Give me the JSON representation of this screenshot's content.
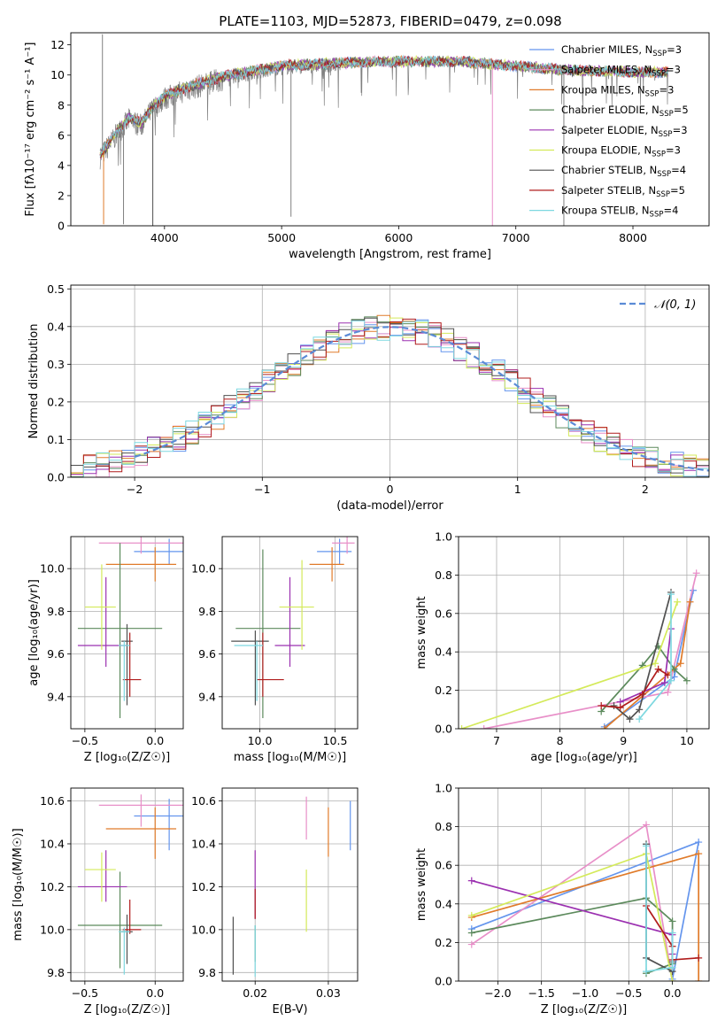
{
  "title": "PLATE=1103, MJD=52873, FIBERID=0479, z=0.098",
  "models": [
    {
      "name": "Chabrier MILES",
      "nssp": "3",
      "color": "#6495ed"
    },
    {
      "name": "Salpeter MILES",
      "nssp": "3",
      "color": "#e88fc8"
    },
    {
      "name": "Kroupa MILES",
      "nssp": "3",
      "color": "#e07b2a"
    },
    {
      "name": "Chabrier ELODIE",
      "nssp": "5",
      "color": "#5c8a5c"
    },
    {
      "name": "Salpeter ELODIE",
      "nssp": "3",
      "color": "#9b30b0"
    },
    {
      "name": "Kroupa ELODIE",
      "nssp": "3",
      "color": "#d4ea5a"
    },
    {
      "name": "Chabrier STELIB",
      "nssp": "4",
      "color": "#505050"
    },
    {
      "name": "Salpeter STELIB",
      "nssp": "5",
      "color": "#b01c1c"
    },
    {
      "name": "Kroupa STELIB",
      "nssp": "4",
      "color": "#7ed8e0"
    }
  ],
  "chart_data": [
    {
      "id": "spectrum",
      "type": "line",
      "xlabel": "wavelength [Angstrom, rest frame]",
      "ylabel": "Flux [fλ10⁻¹⁷ erg cm⁻² s⁻¹ A⁻¹]",
      "xlim": [
        3200,
        8650
      ],
      "ylim": [
        0,
        12.8
      ],
      "xticks": [
        4000,
        5000,
        6000,
        7000,
        8000
      ],
      "yticks": [
        0,
        2,
        4,
        6,
        8,
        10,
        12
      ],
      "continuum": {
        "x": [
          3450,
          3500,
          3600,
          3700,
          3800,
          3900,
          4000,
          4200,
          4500,
          5000,
          5500,
          6000,
          6500,
          7000,
          7500,
          8000,
          8300
        ],
        "y": [
          4.7,
          5.2,
          6.3,
          7.2,
          6.8,
          7.9,
          8.6,
          9.2,
          9.9,
          10.6,
          10.8,
          10.9,
          10.9,
          10.6,
          10.3,
          10.2,
          10.2
        ]
      },
      "data_range": [
        3450,
        8300
      ],
      "spikes": [
        {
          "x": 3470,
          "y": 12.7
        },
        {
          "x": 3480,
          "y": 0.1
        },
        {
          "x": 3650,
          "y": 0.1
        },
        {
          "x": 3900,
          "y": 0.0
        },
        {
          "x": 5080,
          "y": 0.6
        },
        {
          "x": 6800,
          "y": 0.0
        },
        {
          "x": 7410,
          "y": 0.0
        }
      ]
    },
    {
      "id": "residuals",
      "type": "histogram",
      "xlabel": "(data-model)/error",
      "ylabel": "Normed distribution",
      "xlim": [
        -2.5,
        2.5
      ],
      "ylim": [
        0,
        0.51
      ],
      "xticks": [
        -2,
        -1,
        0,
        1,
        2
      ],
      "yticks": [
        0.0,
        0.1,
        0.2,
        0.3,
        0.4,
        0.5
      ],
      "bins": 50,
      "legend": "𝒩(0, 1)",
      "reference": "gaussian mean 0, sigma 1"
    },
    {
      "id": "age_vs_Z",
      "type": "scatter",
      "xlabel": "Z [log₁₀(Z/Z☉)]",
      "ylabel": "age  [log₁₀(age/yr)]",
      "xlim": [
        -0.6,
        0.2
      ],
      "ylim": [
        9.25,
        10.15
      ],
      "xticks": [
        -0.5,
        0.0
      ],
      "yticks": [
        9.4,
        9.6,
        9.8,
        10.0
      ],
      "points": [
        {
          "x": 0.1,
          "xerr": [
            0.25,
            0.1
          ],
          "y": 10.08,
          "yerr": [
            0.06,
            0.06
          ]
        },
        {
          "x": -0.1,
          "xerr": [
            0.3,
            0.3
          ],
          "y": 10.12,
          "yerr": [
            0.05,
            0.05
          ]
        },
        {
          "x": 0.0,
          "xerr": [
            0.35,
            0.15
          ],
          "y": 10.02,
          "yerr": [
            0.08,
            0.08
          ]
        },
        {
          "x": -0.25,
          "xerr": [
            0.3,
            0.3
          ],
          "y": 9.72,
          "yerr": [
            0.42,
            0.4
          ]
        },
        {
          "x": -0.35,
          "xerr": [
            0.2,
            0.15
          ],
          "y": 9.64,
          "yerr": [
            0.1,
            0.32
          ]
        },
        {
          "x": -0.38,
          "xerr": [
            0.12,
            0.1
          ],
          "y": 9.82,
          "yerr": [
            0.2,
            0.2
          ]
        },
        {
          "x": -0.2,
          "xerr": [
            0.04,
            0.04
          ],
          "y": 9.66,
          "yerr": [
            0.3,
            0.08
          ]
        },
        {
          "x": -0.18,
          "xerr": [
            0.05,
            0.08
          ],
          "y": 9.48,
          "yerr": [
            0.08,
            0.22
          ]
        },
        {
          "x": -0.22,
          "xerr": [
            0.04,
            0.04
          ],
          "y": 9.64,
          "yerr": [
            0.26,
            0.02
          ]
        }
      ]
    },
    {
      "id": "age_vs_mass",
      "type": "scatter",
      "xlabel": "mass [log₁₀(M/M☉)]",
      "xlim": [
        9.75,
        10.65
      ],
      "ylim": [
        9.25,
        10.15
      ],
      "xticks": [
        10.0,
        10.5
      ],
      "yticks": [
        9.4,
        9.6,
        9.8,
        10.0
      ],
      "points": [
        {
          "x": 10.53,
          "xerr": [
            0.15,
            0.08
          ],
          "y": 10.08,
          "yerr": [
            0.06,
            0.06
          ]
        },
        {
          "x": 10.58,
          "xerr": [
            0.1,
            0.05
          ],
          "y": 10.12,
          "yerr": [
            0.05,
            0.05
          ]
        },
        {
          "x": 10.48,
          "xerr": [
            0.15,
            0.08
          ],
          "y": 10.02,
          "yerr": [
            0.08,
            0.08
          ]
        },
        {
          "x": 10.02,
          "xerr": [
            0.18,
            0.25
          ],
          "y": 9.72,
          "yerr": [
            0.42,
            0.37
          ]
        },
        {
          "x": 10.2,
          "xerr": [
            0.1,
            0.1
          ],
          "y": 9.64,
          "yerr": [
            0.1,
            0.32
          ]
        },
        {
          "x": 10.28,
          "xerr": [
            0.15,
            0.08
          ],
          "y": 9.82,
          "yerr": [
            0.2,
            0.22
          ]
        },
        {
          "x": 9.97,
          "xerr": [
            0.16,
            0.09
          ],
          "y": 9.66,
          "yerr": [
            0.3,
            0.05
          ]
        },
        {
          "x": 10.02,
          "xerr": [
            0.04,
            0.14
          ],
          "y": 9.48,
          "yerr": [
            0.08,
            0.22
          ]
        },
        {
          "x": 9.98,
          "xerr": [
            0.15,
            0.04
          ],
          "y": 9.64,
          "yerr": [
            0.26,
            0.02
          ]
        }
      ]
    },
    {
      "id": "weight_vs_age",
      "type": "line",
      "xlabel": "age  [log₁₀(age/yr)]",
      "ylabel": "mass weight",
      "xlim": [
        6.4,
        10.35
      ],
      "ylim": [
        0,
        1.0
      ],
      "xticks": [
        7,
        8,
        9,
        10
      ],
      "yticks": [
        0.0,
        0.2,
        0.4,
        0.6,
        0.8,
        1.0
      ],
      "series": [
        {
          "x": [
            8.7,
            9.8,
            10.1
          ],
          "y": [
            0.01,
            0.27,
            0.72
          ]
        },
        {
          "x": [
            6.8,
            9.7,
            10.15
          ],
          "y": [
            0.0,
            0.19,
            0.81
          ]
        },
        {
          "x": [
            8.7,
            9.9,
            10.05
          ],
          "y": [
            0.0,
            0.34,
            0.66
          ]
        },
        {
          "x": [
            8.65,
            9.3,
            9.55,
            9.8,
            10.0
          ],
          "y": [
            0.09,
            0.33,
            0.43,
            0.31,
            0.25
          ]
        },
        {
          "x": [
            8.95,
            9.65,
            9.75
          ],
          "y": [
            0.14,
            0.24,
            0.52
          ]
        },
        {
          "x": [
            6.45,
            9.5,
            9.85
          ],
          "y": [
            0.0,
            0.34,
            0.66
          ]
        },
        {
          "x": [
            8.85,
            9.1,
            9.25,
            9.75
          ],
          "y": [
            0.12,
            0.05,
            0.1,
            0.71
          ]
        },
        {
          "x": [
            8.65,
            8.95,
            9.3,
            9.55,
            9.7
          ],
          "y": [
            0.12,
            0.11,
            0.18,
            0.31,
            0.28
          ]
        },
        {
          "x": [
            9.25,
            9.75,
            9.75
          ],
          "y": [
            0.05,
            0.25,
            0.7
          ]
        }
      ]
    },
    {
      "id": "mass_vs_Z",
      "type": "scatter",
      "xlabel": "Z [log₁₀(Z/Z☉)]",
      "ylabel": "mass [log₁₀(M/M☉)]",
      "xlim": [
        -0.6,
        0.2
      ],
      "ylim": [
        9.76,
        10.66
      ],
      "xticks": [
        -0.5,
        0.0
      ],
      "yticks": [
        9.8,
        10.0,
        10.2,
        10.4,
        10.6
      ],
      "points": [
        {
          "x": 0.1,
          "xerr": [
            0.25,
            0.1
          ],
          "y": 10.53,
          "yerr": [
            0.16,
            0.08
          ]
        },
        {
          "x": -0.1,
          "xerr": [
            0.3,
            0.3
          ],
          "y": 10.58,
          "yerr": [
            0.1,
            0.05
          ]
        },
        {
          "x": 0.0,
          "xerr": [
            0.35,
            0.15
          ],
          "y": 10.47,
          "yerr": [
            0.14,
            0.1
          ]
        },
        {
          "x": -0.25,
          "xerr": [
            0.3,
            0.3
          ],
          "y": 10.02,
          "yerr": [
            0.2,
            0.25
          ]
        },
        {
          "x": -0.35,
          "xerr": [
            0.2,
            0.15
          ],
          "y": 10.2,
          "yerr": [
            0.07,
            0.17
          ]
        },
        {
          "x": -0.38,
          "xerr": [
            0.12,
            0.1
          ],
          "y": 10.28,
          "yerr": [
            0.15,
            0.08
          ]
        },
        {
          "x": -0.2,
          "xerr": [
            0.04,
            0.04
          ],
          "y": 9.99,
          "yerr": [
            0.15,
            0.08
          ]
        },
        {
          "x": -0.18,
          "xerr": [
            0.05,
            0.08
          ],
          "y": 10.0,
          "yerr": [
            0.02,
            0.14
          ]
        },
        {
          "x": -0.22,
          "xerr": [
            0.04,
            0.04
          ],
          "y": 9.99,
          "yerr": [
            0.2,
            0.02
          ]
        }
      ]
    },
    {
      "id": "mass_vs_ebv",
      "type": "scatter",
      "xlabel": "E(B-V)",
      "xlim": [
        0.0155,
        0.034
      ],
      "ylim": [
        9.76,
        10.66
      ],
      "xticks": [
        0.02,
        0.03
      ],
      "yticks": [
        9.8,
        10.0,
        10.2,
        10.4,
        10.6
      ],
      "points": [
        {
          "x": 0.033,
          "y": 10.48,
          "yerr": [
            0.11,
            0.12
          ]
        },
        {
          "x": 0.027,
          "y": 10.52,
          "yerr": [
            0.1,
            0.1
          ]
        },
        {
          "x": 0.03,
          "y": 10.47,
          "yerr": [
            0.13,
            0.1
          ]
        },
        {
          "x": 0.02,
          "y": 9.99,
          "yerr": [
            0.14,
            0.03
          ]
        },
        {
          "x": 0.02,
          "y": 10.2,
          "yerr": [
            0.15,
            0.17
          ]
        },
        {
          "x": 0.027,
          "y": 10.13,
          "yerr": [
            0.14,
            0.15
          ]
        },
        {
          "x": 0.017,
          "y": 9.92,
          "yerr": [
            0.13,
            0.14
          ]
        },
        {
          "x": 0.02,
          "y": 10.12,
          "yerr": [
            0.07,
            0.07
          ]
        },
        {
          "x": 0.02,
          "y": 9.9,
          "yerr": [
            0.12,
            0.12
          ]
        }
      ]
    },
    {
      "id": "weight_vs_Z",
      "type": "line",
      "xlabel": "Z [log₁₀(Z/Z☉)]",
      "ylabel": "mass weight",
      "xlim": [
        -2.45,
        0.42
      ],
      "ylim": [
        0,
        1.0
      ],
      "xticks": [
        -2.0,
        -1.5,
        -1.0,
        -0.5,
        0.0
      ],
      "yticks": [
        0.0,
        0.2,
        0.4,
        0.6,
        0.8,
        1.0
      ],
      "series": [
        {
          "x": [
            -2.3,
            0.3,
            0.0
          ],
          "y": [
            0.27,
            0.72,
            0.01
          ]
        },
        {
          "x": [
            -2.3,
            -0.3,
            0.0
          ],
          "y": [
            0.19,
            0.81,
            0.0
          ]
        },
        {
          "x": [
            -2.3,
            0.3,
            0.3
          ],
          "y": [
            0.33,
            0.66,
            0.0
          ]
        },
        {
          "x": [
            -2.3,
            -0.3,
            0.0,
            0.0,
            -0.3
          ],
          "y": [
            0.25,
            0.43,
            0.31,
            0.09,
            0.04
          ]
        },
        {
          "x": [
            -2.3,
            0.0,
            0.0
          ],
          "y": [
            0.52,
            0.24,
            0.14
          ]
        },
        {
          "x": [
            -2.3,
            -0.3,
            0.0
          ],
          "y": [
            0.34,
            0.66,
            0.0
          ]
        },
        {
          "x": [
            -0.3,
            -0.3,
            0.0,
            0.0
          ],
          "y": [
            0.71,
            0.12,
            0.05,
            0.1
          ]
        },
        {
          "x": [
            -0.3,
            0.0,
            0.0,
            0.3
          ],
          "y": [
            0.39,
            0.18,
            0.11,
            0.12
          ]
        },
        {
          "x": [
            -0.3,
            -0.3,
            0.0,
            0.0
          ],
          "y": [
            0.7,
            0.05,
            0.07,
            0.25
          ]
        }
      ]
    }
  ]
}
